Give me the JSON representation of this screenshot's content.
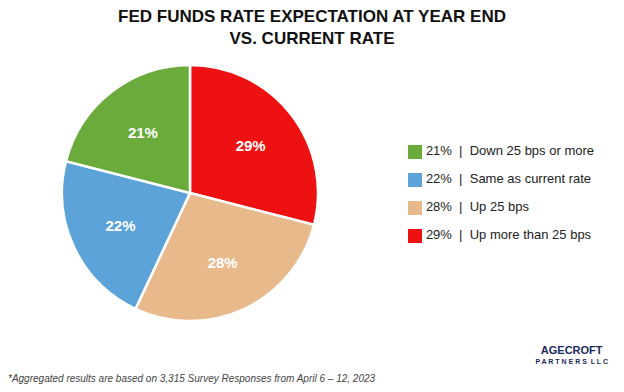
{
  "chart_data": {
    "type": "pie",
    "title": "FED FUNDS RATE EXPECTATION AT YEAR END",
    "subtitle": "VS. CURRENT RATE",
    "categories": [
      "29%  |  Up more than 25 bps",
      "28%  |  Up 25 bps",
      "22%  |  Same as current rate",
      "21%  |  Down 25 bps or more"
    ],
    "values": [
      29,
      28,
      22,
      21
    ],
    "value_labels": [
      "29%",
      "28%",
      "22%",
      "21%"
    ],
    "data_labels": true,
    "colors": [
      "#EE1111",
      "#E8B98A",
      "#5BA3D9",
      "#6AAB3C"
    ],
    "legend": "right",
    "annotations": [
      "*Aggregated results are based on 3,315 Survey Responses from April 6 – 12, 2023",
      "AGECROFT",
      "P A R T N E R S  L L C"
    ]
  }
}
